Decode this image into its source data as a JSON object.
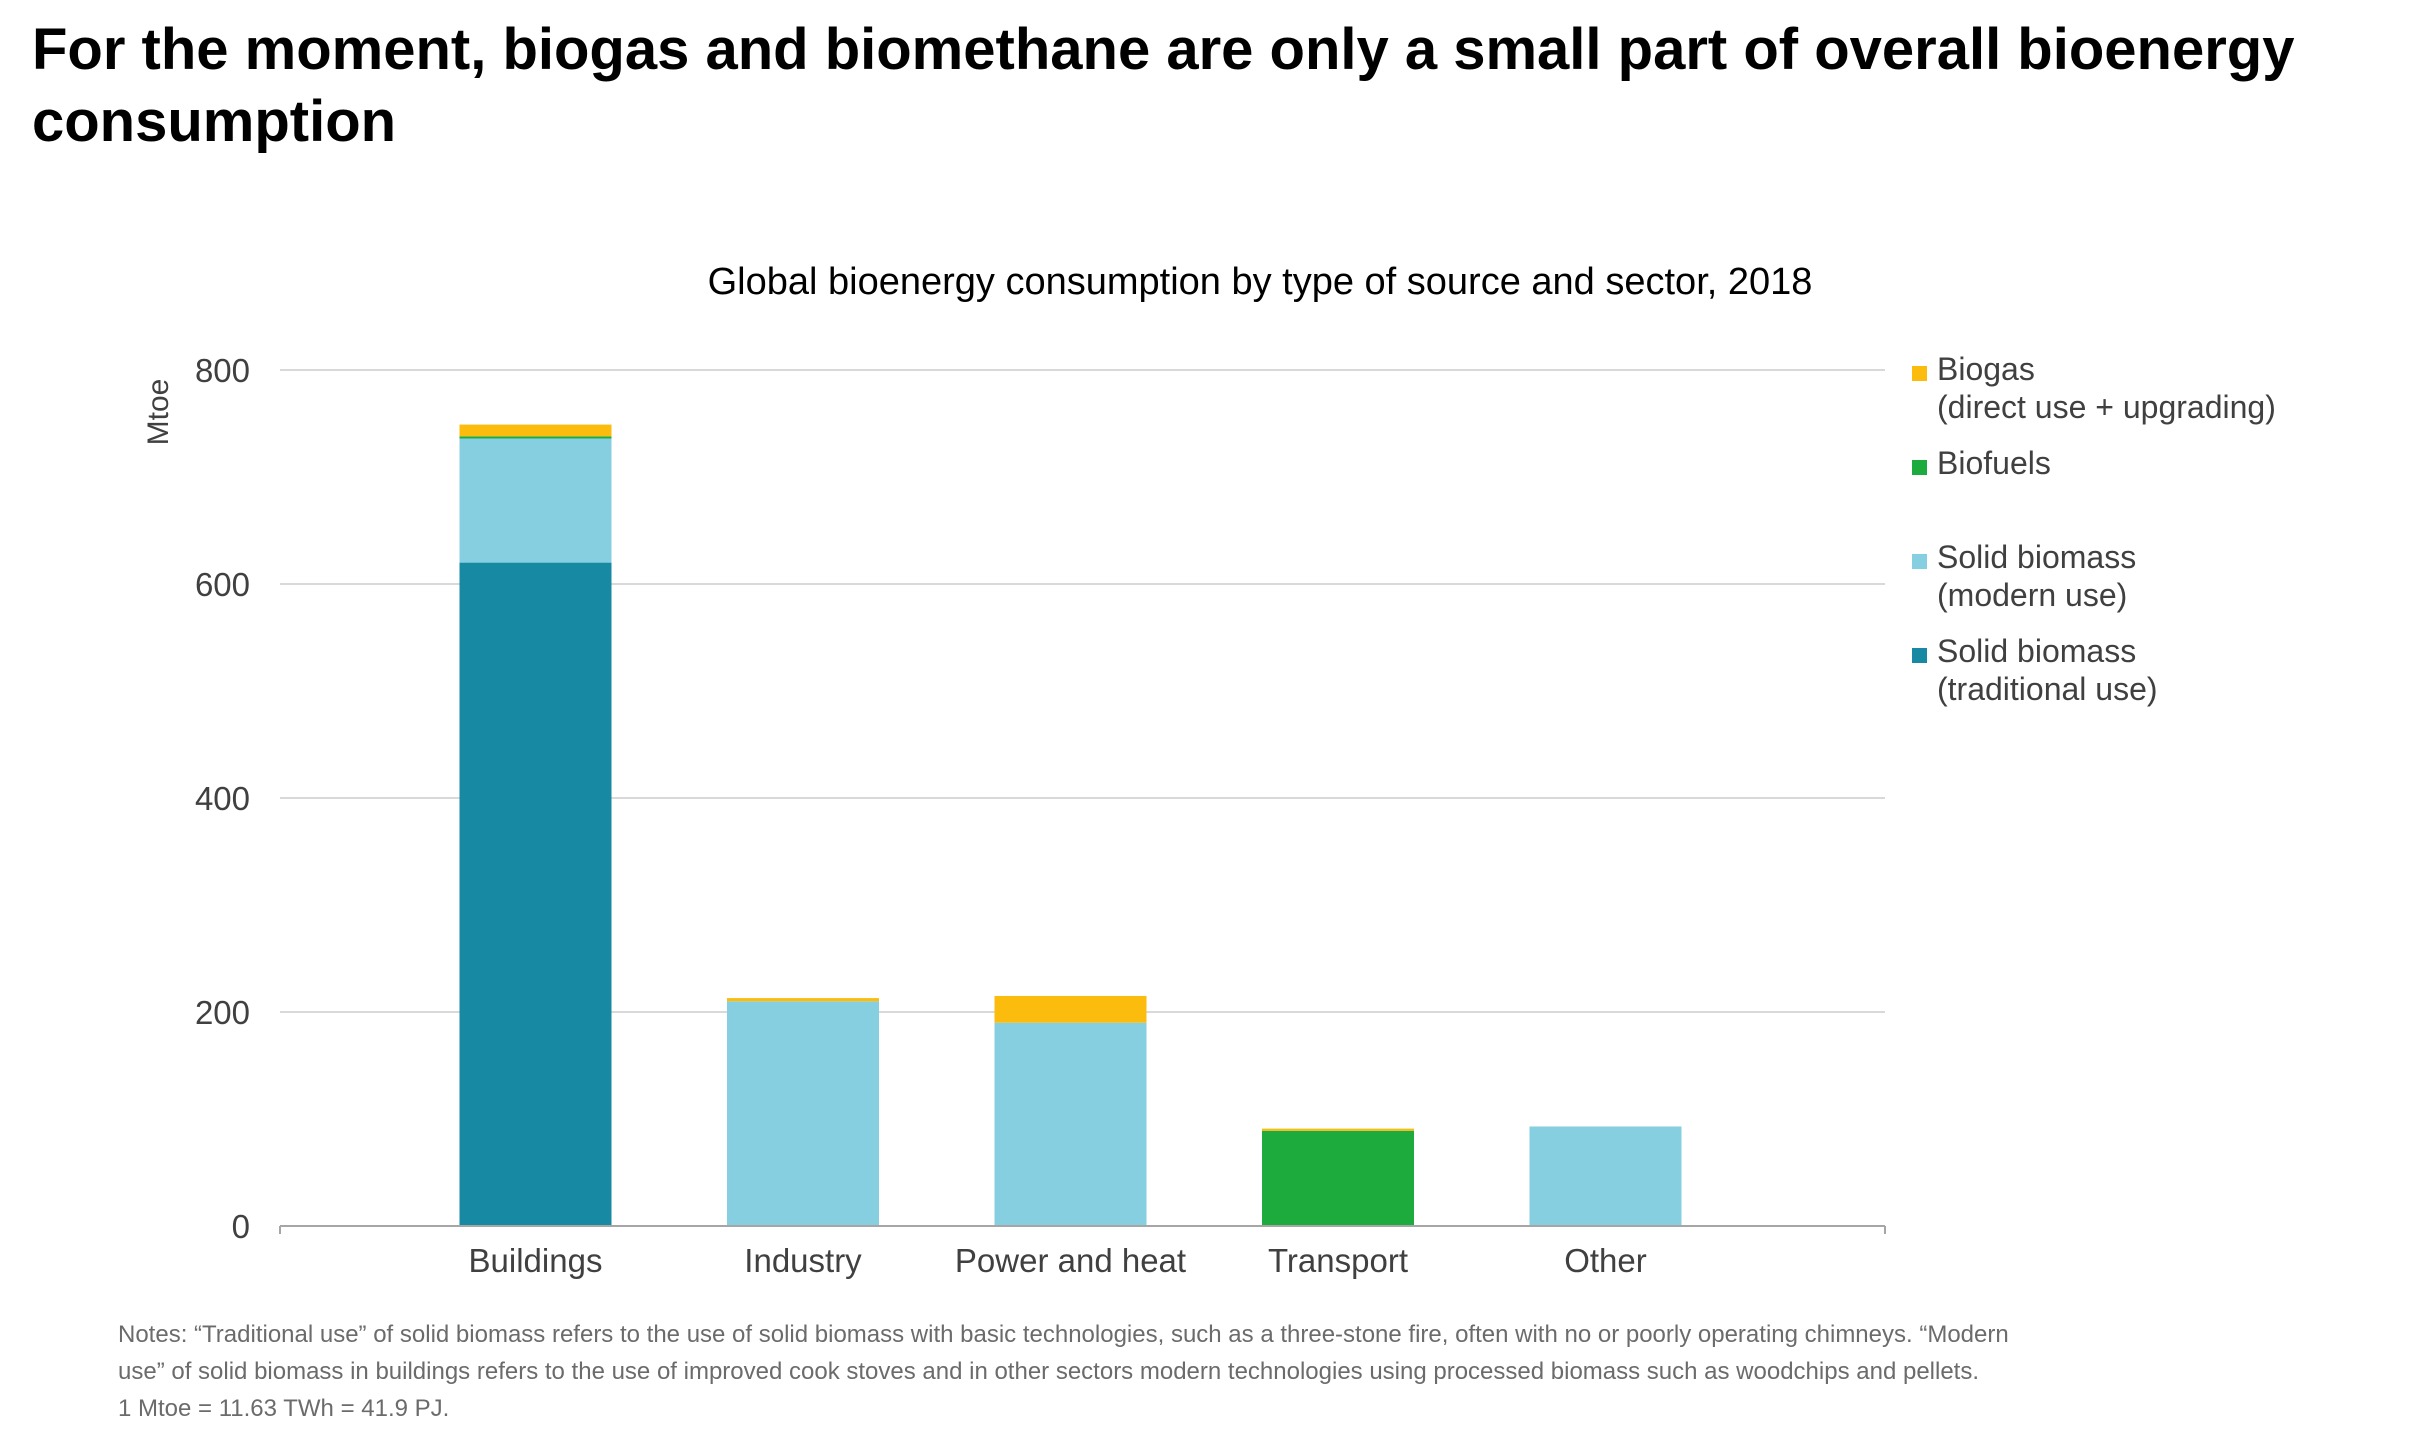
{
  "headline": "For the moment, biogas and biomethane are only a small part of overall bioenergy consumption",
  "chart_data": {
    "type": "bar",
    "stacked": true,
    "title": "Global bioenergy consumption by type of source and sector, 2018",
    "xlabel": "",
    "ylabel": "Mtoe",
    "ylim": [
      0,
      800
    ],
    "yticks": [
      0,
      200,
      400,
      600,
      800
    ],
    "grid": true,
    "legend_position": "right",
    "categories": [
      "Buildings",
      "Industry",
      "Power and heat",
      "Transport",
      "Other"
    ],
    "series": [
      {
        "name": "Solid biomass (traditional use)",
        "legend_lines": [
          "Solid biomass",
          "(traditional use)"
        ],
        "color": "#1789a3",
        "values": [
          620,
          0,
          0,
          0,
          0
        ]
      },
      {
        "name": "Solid biomass (modern use)",
        "legend_lines": [
          "Solid biomass",
          "(modern use)"
        ],
        "color": "#85cfe0",
        "values": [
          116,
          210,
          190,
          0,
          93
        ]
      },
      {
        "name": "Biofuels",
        "legend_lines": [
          "Biofuels"
        ],
        "color": "#1eab3e",
        "values": [
          2,
          0,
          0,
          89,
          0
        ]
      },
      {
        "name": "Biogas (direct use + upgrading)",
        "legend_lines": [
          "Biogas",
          "(direct use + upgrading)"
        ],
        "color": "#fbbc0e",
        "values": [
          11,
          3,
          25,
          2,
          0
        ]
      }
    ]
  },
  "notes": [
    "Notes: “Traditional use” of solid biomass refers to the use of solid biomass with basic technologies, such as a three-stone fire, often with no or poorly operating chimneys. “Modern",
    "use” of solid biomass in buildings refers to the use of improved cook stoves and in other sectors modern technologies using processed biomass such as woodchips and pellets.",
    "1 Mtoe = 11.63 TWh = 41.9 PJ."
  ]
}
